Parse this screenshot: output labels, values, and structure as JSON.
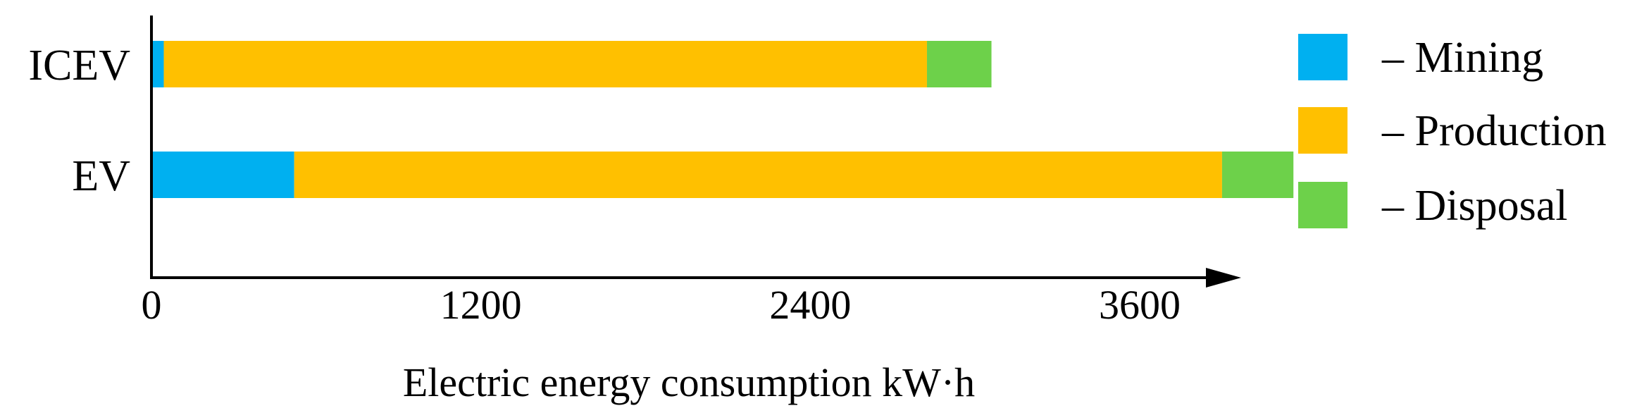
{
  "chart_data": {
    "type": "bar",
    "orientation": "horizontal",
    "stacked": true,
    "categories": [
      "ICEV",
      "EV"
    ],
    "series": [
      {
        "name": "– Mining",
        "color": "#00B0F0",
        "values": [
          45,
          520
        ]
      },
      {
        "name": "– Production",
        "color": "#FFC000",
        "values": [
          2780,
          3380
        ]
      },
      {
        "name": "– Disposal",
        "color": "#6DD14A",
        "values": [
          235,
          260
        ]
      }
    ],
    "xlabel": "Electric energy consumption kW·h",
    "ylabel": "",
    "xlim": [
      0,
      4550
    ],
    "xticks": [
      0,
      1200,
      2400,
      3600
    ],
    "xtick_labels": [
      "0",
      "1200",
      "2400",
      "3600"
    ],
    "grid": false,
    "legend_position": "right"
  }
}
